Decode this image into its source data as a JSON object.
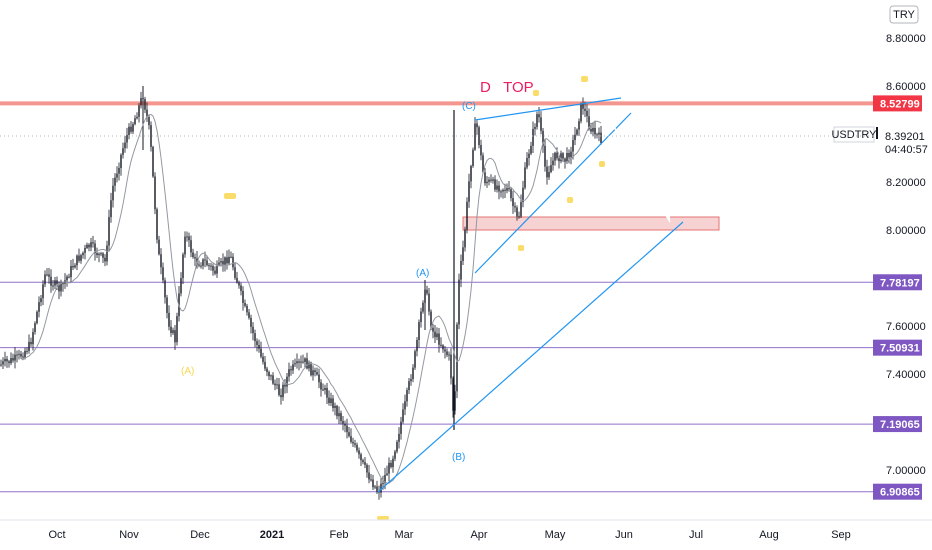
{
  "currency_badge": "TRY",
  "symbol": "USDTRY",
  "last_price": "8.39201",
  "countdown": "04:40:57",
  "colors": {
    "candle": "#131722",
    "ma_line": "#9598a1",
    "resistance": "#f28b82",
    "price_tag_red": "#f23645",
    "purple_line": "#7e57c2",
    "purple_tag": "#7e57c2",
    "trend_blue": "#2196f3",
    "wave_yellow": "#f9d64f",
    "wave_blue": "#2196f3",
    "pink_text": "#e91e63",
    "zone_fill": "#f4c7c7",
    "zone_border": "#e57373",
    "arrow": "#ffffff"
  },
  "chart_data": {
    "type": "candlestick",
    "symbol": "USDTRY",
    "y_axis": {
      "range": [
        6.87,
        8.92
      ],
      "ticks": [
        "8.80000",
        "8.60000",
        "8.20000",
        "8.00000",
        "7.60000",
        "7.40000",
        "7.00000"
      ]
    },
    "x_axis": {
      "ticks": [
        {
          "label": "Oct"
        },
        {
          "label": "Nov"
        },
        {
          "label": "Dec"
        },
        {
          "label": "2021",
          "bold": true
        },
        {
          "label": "Feb"
        },
        {
          "label": "Mar"
        },
        {
          "label": "Apr"
        },
        {
          "label": "May"
        },
        {
          "label": "Jun"
        },
        {
          "label": "Jul"
        },
        {
          "label": "Aug"
        },
        {
          "label": "Sep"
        }
      ]
    },
    "horizontal_levels": [
      {
        "value": 8.52799,
        "label": "8.52799",
        "style": "resistance"
      },
      {
        "value": 7.78197,
        "label": "7.78197",
        "style": "support"
      },
      {
        "value": 7.50931,
        "label": "7.50931",
        "style": "support"
      },
      {
        "value": 7.19065,
        "label": "7.19065",
        "style": "support"
      },
      {
        "value": 6.90865,
        "label": "6.90865",
        "style": "support"
      }
    ],
    "annotations": {
      "title_text": "D   TOP",
      "wave_labels": [
        {
          "text": "(C)",
          "color": "blue"
        },
        {
          "text": "(A)",
          "color": "blue"
        },
        {
          "text": "(B)",
          "color": "blue"
        },
        {
          "text": "(A)",
          "color": "yellow"
        }
      ]
    },
    "key_prices": [
      {
        "value": 6.90865
      },
      {
        "value": 7.50931
      },
      {
        "value": 7.78197
      },
      {
        "value": 8.52799
      },
      {
        "value": 8.39201
      }
    ]
  }
}
